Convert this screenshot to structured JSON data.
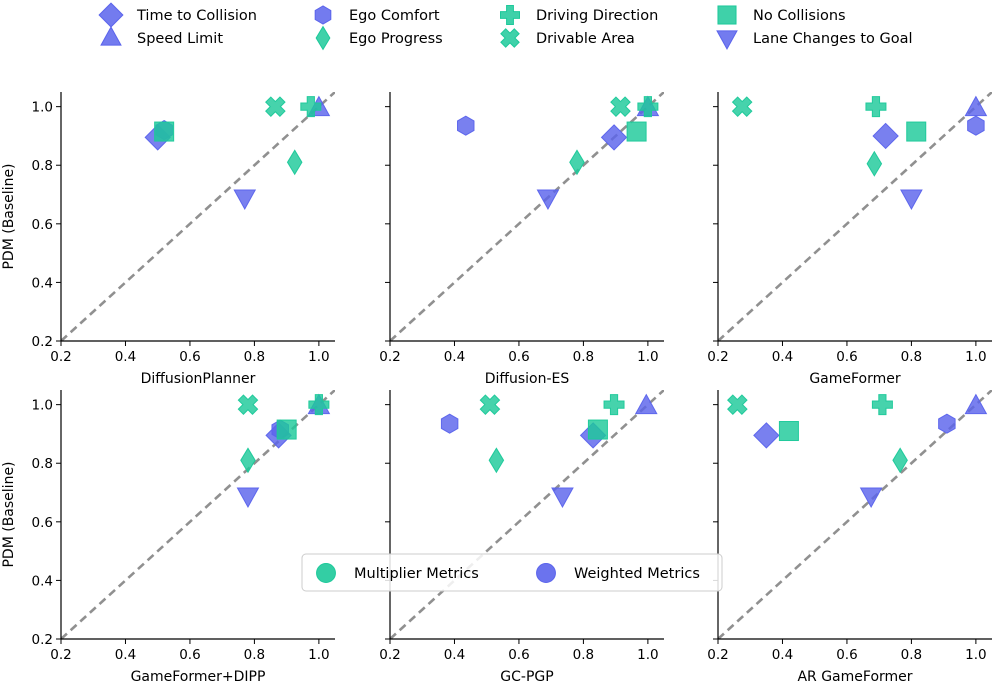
{
  "chart_data": {
    "type": "scatter",
    "shared_ylabel": "PDM (Baseline)",
    "xlim": [
      0.2,
      1.05
    ],
    "ylim": [
      0.2,
      1.05
    ],
    "ticks": [
      0.2,
      0.4,
      0.6,
      0.8,
      1.0
    ],
    "tick_labels": [
      "0.2",
      "0.4",
      "0.6",
      "0.8",
      "1.0"
    ],
    "reference_line": "y = x (dashed, gray)",
    "colors": {
      "multiplier": "#1dc99a",
      "weighted": "#5b64ec",
      "reference": "#909090"
    },
    "metric_legend": [
      {
        "label": "Time to Collision",
        "marker": "diamond",
        "group": "weighted"
      },
      {
        "label": "Speed Limit",
        "marker": "triangle-up",
        "group": "weighted"
      },
      {
        "label": "Ego Comfort",
        "marker": "hexagon",
        "group": "weighted"
      },
      {
        "label": "Ego Progress",
        "marker": "thin-diamond",
        "group": "multiplier"
      },
      {
        "label": "Driving Direction",
        "marker": "plus",
        "group": "multiplier"
      },
      {
        "label": "Drivable Area",
        "marker": "x",
        "group": "multiplier"
      },
      {
        "label": "No Collisions",
        "marker": "square",
        "group": "multiplier"
      },
      {
        "label": "Lane Changes to Goal",
        "marker": "triangle-down",
        "group": "weighted"
      }
    ],
    "group_legend": [
      {
        "label": "Multiplier Metrics",
        "group": "multiplier"
      },
      {
        "label": "Weighted Metrics",
        "group": "weighted"
      }
    ],
    "panels": [
      {
        "xlabel": "DiffusionPlanner",
        "points": [
          {
            "metric": "Time to Collision",
            "x": 0.5,
            "y": 0.895
          },
          {
            "metric": "Speed Limit",
            "x": 1.0,
            "y": 0.995
          },
          {
            "metric": "Ego Comfort",
            "x": 0.52,
            "y": 0.92
          },
          {
            "metric": "Ego Progress",
            "x": 0.925,
            "y": 0.81
          },
          {
            "metric": "Driving Direction",
            "x": 0.975,
            "y": 1.0
          },
          {
            "metric": "Drivable Area",
            "x": 0.865,
            "y": 1.0
          },
          {
            "metric": "No Collisions",
            "x": 0.52,
            "y": 0.915
          },
          {
            "metric": "Lane Changes to Goal",
            "x": 0.77,
            "y": 0.69
          }
        ]
      },
      {
        "xlabel": "Diffusion-ES",
        "points": [
          {
            "metric": "Time to Collision",
            "x": 0.895,
            "y": 0.895
          },
          {
            "metric": "Speed Limit",
            "x": 1.0,
            "y": 0.995
          },
          {
            "metric": "Ego Comfort",
            "x": 0.435,
            "y": 0.935
          },
          {
            "metric": "Ego Progress",
            "x": 0.78,
            "y": 0.81
          },
          {
            "metric": "Driving Direction",
            "x": 1.0,
            "y": 1.0
          },
          {
            "metric": "Drivable Area",
            "x": 0.915,
            "y": 1.0
          },
          {
            "metric": "No Collisions",
            "x": 0.965,
            "y": 0.915
          },
          {
            "metric": "Lane Changes to Goal",
            "x": 0.69,
            "y": 0.69
          }
        ]
      },
      {
        "xlabel": "GameFormer",
        "points": [
          {
            "metric": "Time to Collision",
            "x": 0.72,
            "y": 0.9
          },
          {
            "metric": "Speed Limit",
            "x": 1.0,
            "y": 0.995
          },
          {
            "metric": "Ego Comfort",
            "x": 1.0,
            "y": 0.935
          },
          {
            "metric": "Ego Progress",
            "x": 0.685,
            "y": 0.805
          },
          {
            "metric": "Driving Direction",
            "x": 0.69,
            "y": 1.0
          },
          {
            "metric": "Drivable Area",
            "x": 0.275,
            "y": 1.0
          },
          {
            "metric": "No Collisions",
            "x": 0.815,
            "y": 0.915
          },
          {
            "metric": "Lane Changes to Goal",
            "x": 0.8,
            "y": 0.69
          }
        ]
      },
      {
        "xlabel": "GameFormer+DIPP",
        "points": [
          {
            "metric": "Time to Collision",
            "x": 0.875,
            "y": 0.895
          },
          {
            "metric": "Speed Limit",
            "x": 1.0,
            "y": 0.995
          },
          {
            "metric": "Ego Comfort",
            "x": 0.88,
            "y": 0.915
          },
          {
            "metric": "Ego Progress",
            "x": 0.78,
            "y": 0.81
          },
          {
            "metric": "Driving Direction",
            "x": 1.0,
            "y": 1.0
          },
          {
            "metric": "Drivable Area",
            "x": 0.78,
            "y": 1.0
          },
          {
            "metric": "No Collisions",
            "x": 0.9,
            "y": 0.915
          },
          {
            "metric": "Lane Changes to Goal",
            "x": 0.78,
            "y": 0.69
          }
        ]
      },
      {
        "xlabel": "GC-PGP",
        "points": [
          {
            "metric": "Time to Collision",
            "x": 0.83,
            "y": 0.895
          },
          {
            "metric": "Speed Limit",
            "x": 0.995,
            "y": 0.995
          },
          {
            "metric": "Ego Comfort",
            "x": 0.385,
            "y": 0.935
          },
          {
            "metric": "Ego Progress",
            "x": 0.53,
            "y": 0.81
          },
          {
            "metric": "Driving Direction",
            "x": 0.895,
            "y": 1.0
          },
          {
            "metric": "Drivable Area",
            "x": 0.51,
            "y": 1.0
          },
          {
            "metric": "No Collisions",
            "x": 0.845,
            "y": 0.915
          },
          {
            "metric": "Lane Changes to Goal",
            "x": 0.735,
            "y": 0.69
          }
        ]
      },
      {
        "xlabel": "AR GameFormer",
        "points": [
          {
            "metric": "Time to Collision",
            "x": 0.35,
            "y": 0.895
          },
          {
            "metric": "Speed Limit",
            "x": 1.0,
            "y": 0.995
          },
          {
            "metric": "Ego Comfort",
            "x": 0.91,
            "y": 0.935
          },
          {
            "metric": "Ego Progress",
            "x": 0.765,
            "y": 0.81
          },
          {
            "metric": "Driving Direction",
            "x": 0.71,
            "y": 1.0
          },
          {
            "metric": "Drivable Area",
            "x": 0.26,
            "y": 1.0
          },
          {
            "metric": "No Collisions",
            "x": 0.42,
            "y": 0.91
          },
          {
            "metric": "Lane Changes to Goal",
            "x": 0.675,
            "y": 0.69
          }
        ]
      }
    ]
  }
}
